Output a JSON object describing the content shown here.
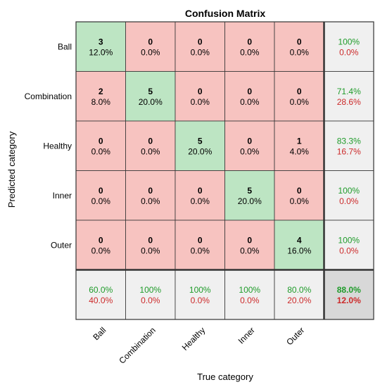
{
  "chart_data": {
    "type": "heatmap",
    "title": "Confusion Matrix",
    "xlabel": "True category",
    "ylabel": "Predicted category",
    "categories": [
      "Ball",
      "Combination",
      "Healthy",
      "Inner",
      "Outer"
    ],
    "counts": [
      [
        3,
        0,
        0,
        0,
        0
      ],
      [
        2,
        5,
        0,
        0,
        0
      ],
      [
        0,
        0,
        5,
        0,
        1
      ],
      [
        0,
        0,
        0,
        5,
        0
      ],
      [
        0,
        0,
        0,
        0,
        4
      ]
    ],
    "cell_percents": [
      [
        "12.0%",
        "0.0%",
        "0.0%",
        "0.0%",
        "0.0%"
      ],
      [
        "8.0%",
        "20.0%",
        "0.0%",
        "0.0%",
        "0.0%"
      ],
      [
        "0.0%",
        "0.0%",
        "20.0%",
        "0.0%",
        "4.0%"
      ],
      [
        "0.0%",
        "0.0%",
        "0.0%",
        "20.0%",
        "0.0%"
      ],
      [
        "0.0%",
        "0.0%",
        "0.0%",
        "0.0%",
        "16.0%"
      ]
    ],
    "row_summary": [
      [
        "100%",
        "0.0%"
      ],
      [
        "71.4%",
        "28.6%"
      ],
      [
        "83.3%",
        "16.7%"
      ],
      [
        "100%",
        "0.0%"
      ],
      [
        "100%",
        "0.0%"
      ]
    ],
    "column_summary": [
      [
        "60.0%",
        "40.0%"
      ],
      [
        "100%",
        "0.0%"
      ],
      [
        "100%",
        "0.0%"
      ],
      [
        "100%",
        "0.0%"
      ],
      [
        "80.0%",
        "20.0%"
      ]
    ],
    "overall": [
      "88.0%",
      "12.0%"
    ],
    "colors": {
      "correct_cell": "#bde5c3",
      "incorrect_cell": "#f7c3c0",
      "summary_cell": "#f0f0f0",
      "overall_cell": "#d8d8d8",
      "correct_text": "#1f9b2a",
      "incorrect_text": "#cc2a2a",
      "grid": "#333333"
    }
  }
}
